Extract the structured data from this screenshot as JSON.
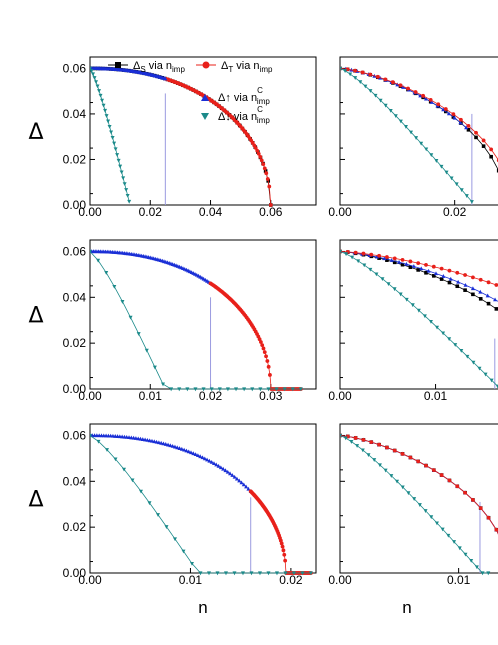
{
  "figure": {
    "y_symbol": "Δ",
    "x_symbol": "n",
    "colors": {
      "s": "#000000",
      "t": "#e8201a",
      "up": "#1a2fd6",
      "down": "#1b8a8a",
      "vline": "#9a9ae0"
    }
  },
  "legend": {
    "s": {
      "label": "Δ",
      "sub": "S",
      "tail": " via n",
      "tail_sub": "imp"
    },
    "t": {
      "label": "Δ",
      "sub": "T",
      "tail": " via n",
      "tail_sub": "imp"
    },
    "up": {
      "label": "Δ↑  via n",
      "sup": "C",
      "tail_sub": "imp"
    },
    "down": {
      "label": "Δ↓  via n",
      "sup": "C",
      "tail_sub": "imp"
    }
  },
  "chart_data": [
    {
      "type": "line",
      "panel": "top-left",
      "xlim": [
        0,
        0.075
      ],
      "ylim": [
        0,
        0.065
      ],
      "xticks": [
        0.0,
        0.02,
        0.04,
        0.06
      ],
      "xticklabels": [
        "0.00",
        "0.02",
        "0.04",
        "0.06"
      ],
      "yticks": [
        0.0,
        0.02,
        0.04,
        0.06
      ],
      "yticklabels": [
        "0.00",
        "0.02",
        "0.04",
        "0.06"
      ],
      "ylabel": "Δ",
      "xlabel": "",
      "series": [
        {
          "key": "s",
          "style": "dense",
          "x": [
            0,
            0.06
          ],
          "y": [
            0.06,
            0.002
          ],
          "n_c": 0.06
        },
        {
          "key": "t",
          "style": "dense",
          "x": [
            0.025,
            0.06
          ],
          "y": [
            0.049,
            0
          ],
          "n_c": 0.06
        },
        {
          "key": "up",
          "style": "dense",
          "x": [
            0,
            0.025
          ],
          "y": [
            0.06,
            0.049
          ],
          "n_c": 0.06
        },
        {
          "key": "down",
          "style": "sparse",
          "x": [
            0,
            0.013
          ],
          "y": [
            0.06,
            0
          ],
          "n_c": 0.0133
        }
      ],
      "vlines": [
        {
          "x": 0.025,
          "y": [
            0,
            0.049
          ]
        }
      ],
      "legend_position": "top-right"
    },
    {
      "type": "line",
      "panel": "top-right",
      "xlim": [
        0,
        0.03
      ],
      "ylim": [
        0,
        0.065
      ],
      "xticks": [
        0.0,
        0.02
      ],
      "xticklabels": [
        "0.00",
        "0.02"
      ],
      "yticks": [
        0.0,
        0.02,
        0.04,
        0.06
      ],
      "series": [
        {
          "key": "s",
          "x": [
            0,
            0.029
          ],
          "y": [
            0.06,
            0.003
          ],
          "n_c": 0.029
        },
        {
          "key": "up",
          "x": [
            0,
            0.022
          ],
          "y": [
            0.06,
            0.04
          ],
          "n_c": 0.029
        },
        {
          "key": "t",
          "x": [
            0,
            0.029
          ],
          "y": [
            0.06,
            0.003
          ],
          "n_c": 0.03
        },
        {
          "key": "down",
          "x": [
            0,
            0.023
          ],
          "y": [
            0.06,
            0
          ],
          "n_c": 0.0235
        }
      ],
      "vlines": [
        {
          "x": 0.023,
          "y": [
            0,
            0.04
          ]
        }
      ]
    },
    {
      "type": "line",
      "panel": "middle-left",
      "xlim": [
        0,
        0.0375
      ],
      "ylim": [
        0,
        0.065
      ],
      "xticks": [
        0.0,
        0.01,
        0.02,
        0.03
      ],
      "xticklabels": [
        "0.00",
        "0.01",
        "0.02",
        "0.03"
      ],
      "yticks": [
        0.0,
        0.02,
        0.04,
        0.06
      ],
      "yticklabels": [
        "0.00",
        "0.02",
        "0.04",
        "0.06"
      ],
      "ylabel": "Δ",
      "series": [
        {
          "key": "up",
          "x": [
            0,
            0.02
          ],
          "y": [
            0.06,
            0.04
          ],
          "n_c": 0.03
        },
        {
          "key": "t",
          "x": [
            0.02,
            0.035
          ],
          "y": [
            0.04,
            0
          ],
          "n_c": 0.03
        },
        {
          "key": "down",
          "x": [
            0,
            0.035
          ],
          "y": [
            0.06,
            0
          ],
          "n_c": 0.0125
        }
      ],
      "vlines": [
        {
          "x": 0.02,
          "y": [
            0,
            0.04
          ]
        }
      ]
    },
    {
      "type": "line",
      "panel": "middle-right",
      "xlim": [
        0,
        0.018
      ],
      "ylim": [
        0,
        0.065
      ],
      "xticks": [
        0.0,
        0.01
      ],
      "xticklabels": [
        "0.00",
        "0.01"
      ],
      "yticks": [
        0.0,
        0.02,
        0.04,
        0.06
      ],
      "series": [
        {
          "key": "s",
          "x": [
            0,
            0.018
          ],
          "y": [
            0.06,
            0.018
          ],
          "n_c": 0.022
        },
        {
          "key": "up",
          "x": [
            0,
            0.017
          ],
          "y": [
            0.06,
            0.022
          ],
          "n_c": 0.024
        },
        {
          "key": "t",
          "x": [
            0,
            0.018
          ],
          "y": [
            0.06,
            0.018
          ],
          "n_c": 0.03
        },
        {
          "key": "down",
          "x": [
            0,
            0.0165
          ],
          "y": [
            0.06,
            0
          ],
          "n_c": 0.0168
        }
      ],
      "vlines": [
        {
          "x": 0.0162,
          "y": [
            0,
            0.022
          ]
        }
      ]
    },
    {
      "type": "line",
      "panel": "bottom-left",
      "xlim": [
        0,
        0.0225
      ],
      "ylim": [
        0,
        0.065
      ],
      "xticks": [
        0.0,
        0.01,
        0.02
      ],
      "xticklabels": [
        "0.00",
        "0.01",
        "0.02"
      ],
      "yticks": [
        0.0,
        0.02,
        0.04,
        0.06
      ],
      "yticklabels": [
        "0.00",
        "0.02",
        "0.04",
        "0.06"
      ],
      "ylabel": "Δ",
      "xlabel": "n",
      "series": [
        {
          "key": "up",
          "x": [
            0,
            0.016
          ],
          "y": [
            0.06,
            0.033
          ],
          "n_c": 0.0195
        },
        {
          "key": "t",
          "x": [
            0.016,
            0.022
          ],
          "y": [
            0.033,
            0
          ],
          "n_c": 0.0195
        },
        {
          "key": "down",
          "x": [
            0,
            0.022
          ],
          "y": [
            0.06,
            0
          ],
          "n_c": 0.0108
        }
      ],
      "vlines": [
        {
          "x": 0.016,
          "y": [
            0,
            0.033
          ]
        }
      ]
    },
    {
      "type": "line",
      "panel": "bottom-right",
      "xlim": [
        0,
        0.0145
      ],
      "ylim": [
        0,
        0.065
      ],
      "xticks": [
        0.0,
        0.01
      ],
      "xticklabels": [
        "0.00",
        "0.01"
      ],
      "yticks": [
        0.0,
        0.02,
        0.04,
        0.06
      ],
      "xlabel": "n",
      "series": [
        {
          "key": "s",
          "x": [
            0,
            0.0145
          ],
          "y": [
            0.06,
            0.002
          ],
          "n_c": 0.0142
        },
        {
          "key": "up",
          "x": [
            0,
            0.0145
          ],
          "y": [
            0.06,
            0.003
          ],
          "n_c": 0.0142
        },
        {
          "key": "t",
          "x": [
            0,
            0.0145
          ],
          "y": [
            0.06,
            0.002
          ],
          "n_c": 0.0142
        },
        {
          "key": "down",
          "x": [
            0,
            0.0125
          ],
          "y": [
            0.06,
            0
          ],
          "n_c": 0.012
        }
      ],
      "vlines": [
        {
          "x": 0.0118,
          "y": [
            0,
            0.031
          ]
        }
      ]
    }
  ]
}
